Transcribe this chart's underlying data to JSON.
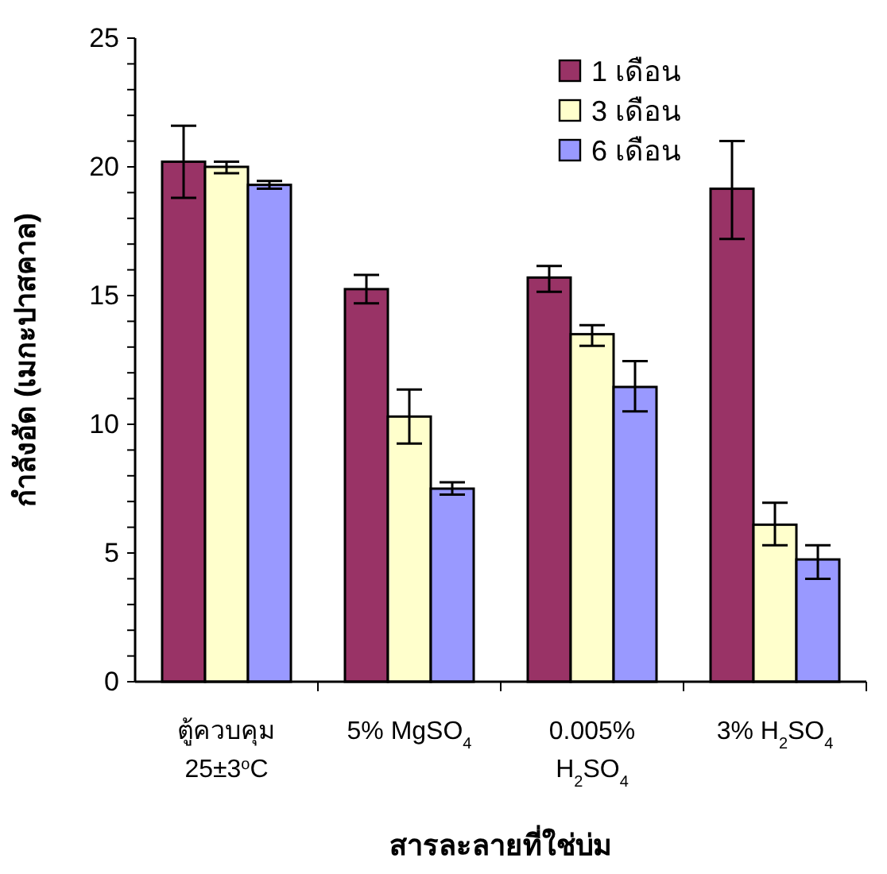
{
  "chart_data": {
    "type": "bar",
    "xlabel": "สารละลายที่ใช่บ่ม",
    "ylabel": "กำลังอัด (เมกะปาสคาล)",
    "categories": [
      "ตู้ควบคุม 25±3$^{o}$C",
      "5% MgSO$_{4}$",
      "0.005% H$_{2}$SO$_{4}$",
      "3% H$_{2}$SO$_{4}$"
    ],
    "series": [
      {
        "name": "1 เดือน",
        "color": "#993366",
        "values": [
          20.2,
          15.25,
          15.7,
          19.15
        ],
        "errors": [
          [
            18.8,
            21.6
          ],
          [
            14.7,
            15.8
          ],
          [
            15.15,
            16.15
          ],
          [
            17.2,
            21.0
          ]
        ]
      },
      {
        "name": "3 เดือน",
        "color": "#ffffcc",
        "values": [
          20.0,
          10.3,
          13.5,
          6.1
        ],
        "errors": [
          [
            19.75,
            20.2
          ],
          [
            9.25,
            11.35
          ],
          [
            13.05,
            13.85
          ],
          [
            5.3,
            6.95
          ]
        ]
      },
      {
        "name": "6 เดือน",
        "color": "#9999ff",
        "values": [
          19.3,
          7.5,
          11.45,
          4.75
        ],
        "errors": [
          [
            19.15,
            19.45
          ],
          [
            7.27,
            7.75
          ],
          [
            10.5,
            12.45
          ],
          [
            4.0,
            5.3
          ]
        ]
      }
    ],
    "ylim": [
      0,
      25
    ],
    "yticks": [
      0,
      {
        "value": 1,
        "label": null
      },
      {
        "value": 2,
        "label": null
      },
      {
        "value": 3,
        "label": null
      },
      {
        "value": 4,
        "label": null
      },
      5,
      {
        "value": 6,
        "label": null
      },
      {
        "value": 7,
        "label": null
      },
      {
        "value": 8,
        "label": null
      },
      {
        "value": 9,
        "label": null
      },
      10,
      {
        "value": 11,
        "label": null
      },
      {
        "value": 12,
        "label": null
      },
      {
        "value": 13,
        "label": null
      },
      {
        "value": 14,
        "label": null
      },
      15,
      {
        "value": 16,
        "label": null
      },
      {
        "value": 17,
        "label": null
      },
      {
        "value": 18,
        "label": null
      },
      {
        "value": 19,
        "label": null
      },
      20,
      {
        "value": 21,
        "label": null
      },
      {
        "value": 22,
        "label": null
      },
      {
        "value": 23,
        "label": null
      },
      {
        "value": 24,
        "label": null
      },
      25
    ],
    "grid": false,
    "legend": "top right"
  }
}
